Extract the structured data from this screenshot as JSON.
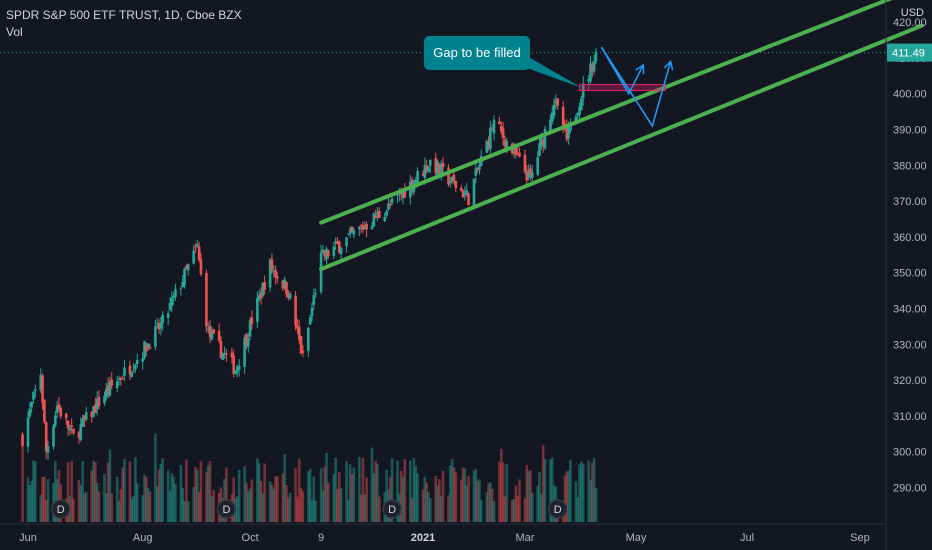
{
  "header": {
    "symbol_line": "SPDR S&P 500 ETF TRUST, 1D, Cboe BZX",
    "volume_label": "Vol",
    "currency": "USD"
  },
  "chart_data": {
    "type": "candlestick",
    "title": "SPDR S&P 500 ETF TRUST, 1D, Cboe BZX",
    "ylim": [
      283,
      424
    ],
    "y_ticks": [
      290,
      300,
      310,
      320,
      330,
      340,
      350,
      360,
      370,
      380,
      390,
      400,
      410,
      420
    ],
    "x_tick_labels": [
      "Jun",
      "Aug",
      "Oct",
      "9",
      "2021",
      "Mar",
      "May",
      "Jul",
      "Sep"
    ],
    "last_price": {
      "value": 411.49,
      "label": "411.49",
      "color": "#26a69a"
    },
    "colors": {
      "up": "#26a69a",
      "down": "#ef5350",
      "trendline": "#4caf50",
      "projection": "#2196f3",
      "gap_zone": "#e91e63"
    },
    "dividend_marker": "D",
    "annotation": {
      "text": "Gap to be filled",
      "color": "#00838f"
    },
    "grid": false,
    "price_path": [
      {
        "date": "2020-05-29",
        "close": 304
      },
      {
        "date": "2020-06-08",
        "close": 322
      },
      {
        "date": "2020-06-11",
        "close": 300
      },
      {
        "date": "2020-06-17",
        "close": 313
      },
      {
        "date": "2020-06-26",
        "close": 304
      },
      {
        "date": "2020-07-13",
        "close": 316
      },
      {
        "date": "2020-07-31",
        "close": 326
      },
      {
        "date": "2020-08-14",
        "close": 336
      },
      {
        "date": "2020-09-02",
        "close": 357
      },
      {
        "date": "2020-09-08",
        "close": 333
      },
      {
        "date": "2020-09-23",
        "close": 323
      },
      {
        "date": "2020-10-12",
        "close": 352
      },
      {
        "date": "2020-10-22",
        "close": 345
      },
      {
        "date": "2020-10-30",
        "close": 326
      },
      {
        "date": "2020-11-09",
        "close": 354
      },
      {
        "date": "2020-11-30",
        "close": 362
      },
      {
        "date": "2020-12-18",
        "close": 369
      },
      {
        "date": "2021-01-08",
        "close": 381
      },
      {
        "date": "2021-01-29",
        "close": 371
      },
      {
        "date": "2021-02-12",
        "close": 392
      },
      {
        "date": "2021-03-04",
        "close": 376
      },
      {
        "date": "2021-03-17",
        "close": 398
      },
      {
        "date": "2021-03-24",
        "close": 387
      },
      {
        "date": "2021-04-01",
        "close": 400
      },
      {
        "date": "2021-04-09",
        "close": 411
      }
    ],
    "trendlines": [
      {
        "name": "upper-channel",
        "from": {
          "date": "2020-11-09",
          "value": 364
        },
        "to": {
          "date": "2021-10-05",
          "value": 430
        }
      },
      {
        "name": "lower-channel",
        "from": {
          "date": "2020-11-09",
          "value": 351
        },
        "to": {
          "date": "2021-10-05",
          "value": 419
        }
      }
    ],
    "gap_zone": {
      "from_date": "2021-03-31",
      "to_date": "2021-05-17",
      "low": 401,
      "high": 402
    },
    "projections": [
      {
        "name": "scenario-1",
        "points": [
          {
            "date": "2021-04-12",
            "value": 413
          },
          {
            "date": "2021-04-27",
            "value": 400
          },
          {
            "date": "2021-05-05",
            "value": 408
          }
        ]
      },
      {
        "name": "scenario-2",
        "points": [
          {
            "date": "2021-04-12",
            "value": 413
          },
          {
            "date": "2021-05-10",
            "value": 391
          },
          {
            "date": "2021-05-20",
            "value": 409
          }
        ]
      }
    ],
    "dividend_dates": [
      "2020-06-19",
      "2020-09-18",
      "2020-12-18",
      "2021-03-19"
    ]
  }
}
